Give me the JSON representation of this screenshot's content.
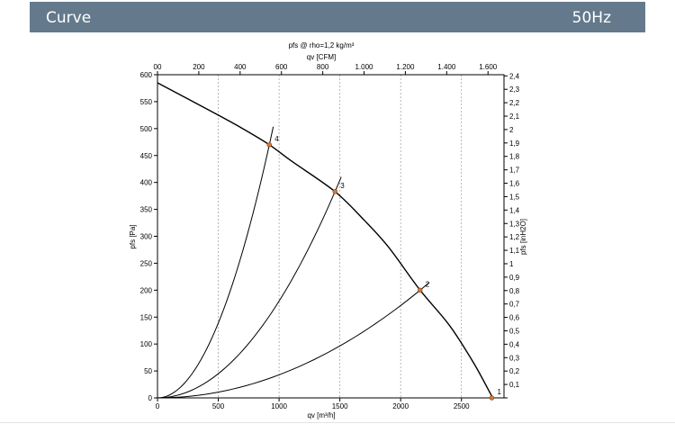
{
  "header": {
    "title": "Curve",
    "frequency": "50Hz"
  },
  "chart_data": {
    "type": "line",
    "title": "pfs @ rho=1,2 kg/m³",
    "xlabel": "qv [m³/h]",
    "ylabel": "pfs [Pa]",
    "x2label": "qv [CFM]",
    "y2label": "pfs [inH2O]",
    "xlim": [
      0,
      2850
    ],
    "ylim": [
      0,
      600
    ],
    "x_ticks": [
      "0",
      "500",
      "1000",
      "1500",
      "2000",
      "2500"
    ],
    "y_ticks": [
      "0",
      "50",
      "100",
      "150",
      "200",
      "250",
      "300",
      "350",
      "400",
      "450",
      "500",
      "550",
      "600"
    ],
    "x2_ticks": [
      "00",
      "200",
      "400",
      "600",
      "800",
      "1.000",
      "1.200",
      "1.400",
      "1.600"
    ],
    "y2_ticks": [
      "",
      "0,1",
      "0,2",
      "0,3",
      "0,4",
      "0,5",
      "0,6",
      "0,7",
      "0,8",
      "0,9",
      "1",
      "1,1",
      "1,2",
      "1,3",
      "1,4",
      "1,5",
      "1,6",
      "1,7",
      "1,8",
      "1,9",
      "2",
      "2,1",
      "2,2",
      "2,3",
      "2,4"
    ],
    "fan_curve": [
      [
        0,
        585
      ],
      [
        250,
        555
      ],
      [
        500,
        525
      ],
      [
        700,
        500
      ],
      [
        920,
        470
      ],
      [
        1100,
        440
      ],
      [
        1460,
        383
      ],
      [
        1700,
        330
      ],
      [
        1900,
        280
      ],
      [
        2160,
        200
      ],
      [
        2400,
        135
      ],
      [
        2600,
        65
      ],
      [
        2750,
        3
      ]
    ],
    "points": [
      {
        "label": "1",
        "x": 2750,
        "y": 0
      },
      {
        "label": "2",
        "x": 2160,
        "y": 200
      },
      {
        "label": "3",
        "x": 1460,
        "y": 383
      },
      {
        "label": "4",
        "x": 920,
        "y": 470
      }
    ],
    "system_curves": [
      {
        "x_end": 2160,
        "y_end": 200
      },
      {
        "x_end": 1460,
        "y_end": 383
      },
      {
        "x_end": 920,
        "y_end": 470
      }
    ],
    "grid": true
  }
}
